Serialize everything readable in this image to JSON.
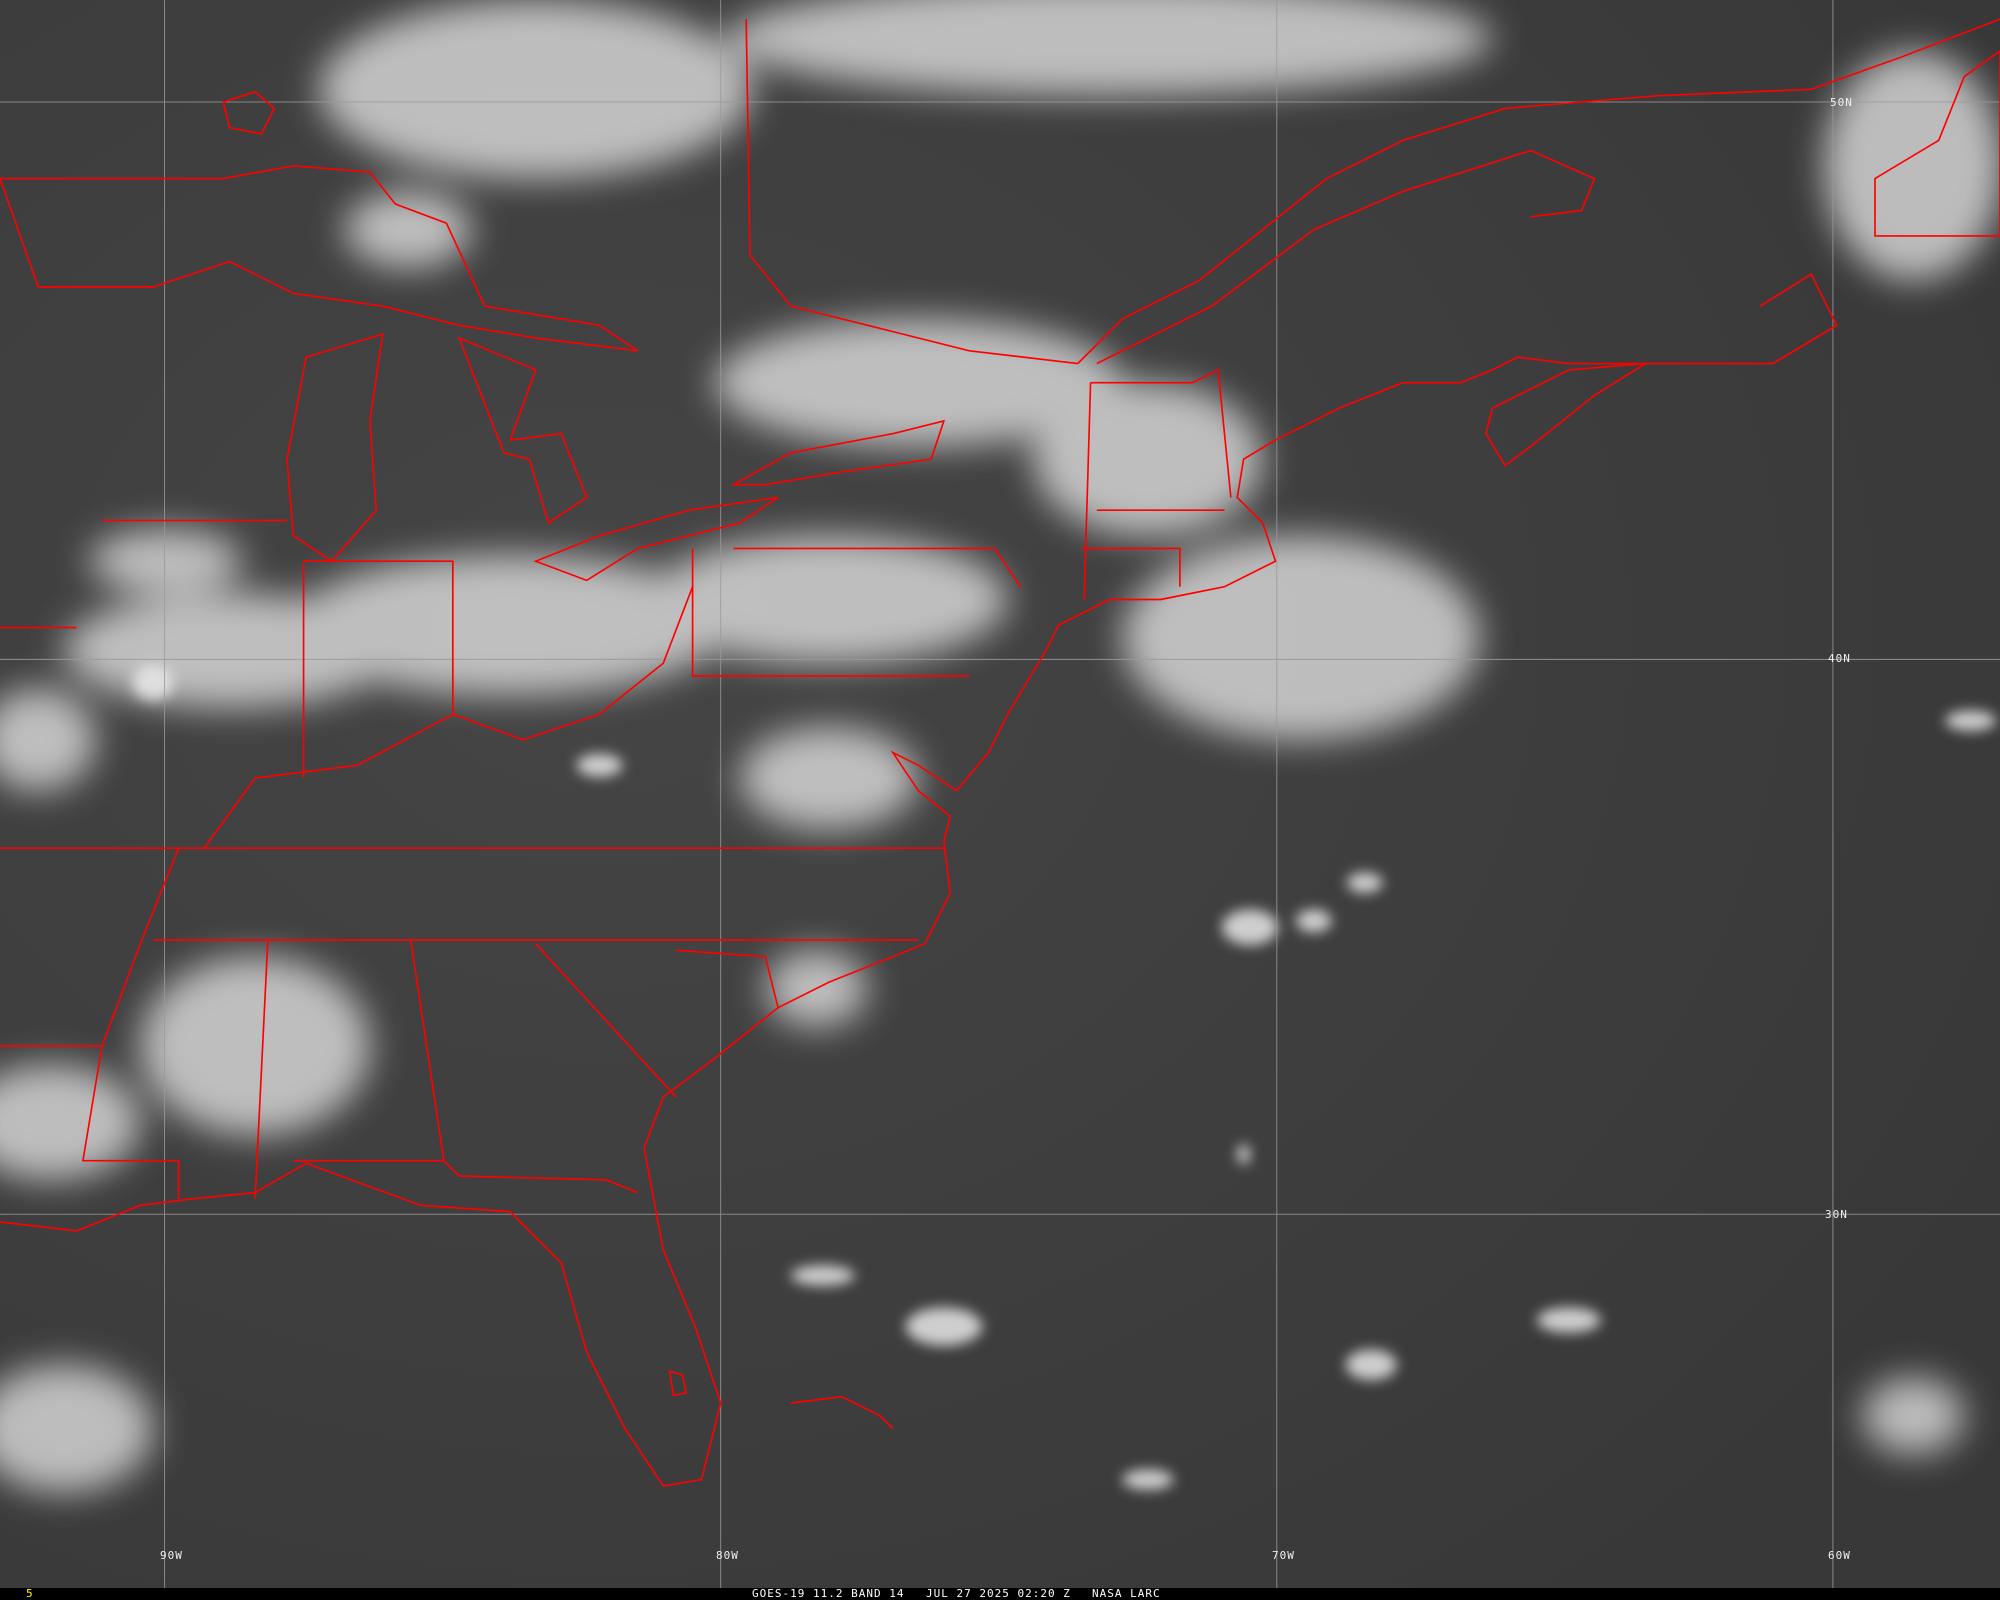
{
  "imagery": {
    "satellite_band": "GOES-19 11.2 BAND 14",
    "datetime": "JUL 27 2025 02:20 Z",
    "source": "NASA LARC",
    "frame_number": "5"
  },
  "grid": {
    "longitudes": [
      "90W",
      "80W",
      "70W",
      "60W"
    ],
    "latitudes": [
      "50N",
      "40N",
      "30N"
    ]
  },
  "colors": {
    "background": "#3c3c3c",
    "borders": "#ff0000",
    "gridlines": "#9a9a9a",
    "clouds": "#f0f0f0",
    "frame_number": "#ffff00"
  }
}
